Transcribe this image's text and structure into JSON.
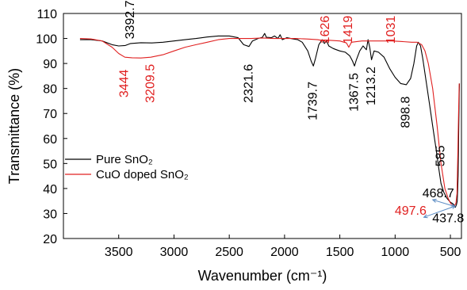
{
  "chart_data": {
    "type": "line",
    "title": "",
    "xlabel": "Wavenumber (cm⁻¹)",
    "ylabel": "Transmittance (%)",
    "xlim": [
      4000,
      400
    ],
    "x_reversed": true,
    "ylim": [
      20,
      110
    ],
    "x_ticks": [
      3500,
      3000,
      2500,
      2000,
      1500,
      1000,
      500
    ],
    "x_tick_labels": [
      "3500",
      "3000",
      "2500",
      "2000",
      "1500",
      "1000",
      "500"
    ],
    "y_ticks": [
      20,
      30,
      40,
      50,
      60,
      70,
      80,
      90,
      100,
      110
    ],
    "y_tick_labels": [
      "20",
      "30",
      "40",
      "50",
      "60",
      "70",
      "80",
      "90",
      "100",
      "110"
    ],
    "grid": false,
    "legend_position": "left",
    "legend": [
      {
        "label": "Pure SnO₂",
        "color": "#000000"
      },
      {
        "label": "CuO doped SnO₂",
        "color": "#e02020"
      }
    ],
    "series": [
      {
        "name": "Pure SnO₂",
        "color": "#000000",
        "points": [
          [
            3850,
            99.5
          ],
          [
            3750,
            99.5
          ],
          [
            3650,
            99.0
          ],
          [
            3560,
            97.5
          ],
          [
            3500,
            97.0
          ],
          [
            3440,
            97.2
          ],
          [
            3392.7,
            98.0
          ],
          [
            3300,
            98.3
          ],
          [
            3200,
            98.2
          ],
          [
            3100,
            98.5
          ],
          [
            3000,
            99.0
          ],
          [
            2900,
            99.5
          ],
          [
            2800,
            100.0
          ],
          [
            2700,
            100.6
          ],
          [
            2600,
            101.0
          ],
          [
            2500,
            101.0
          ],
          [
            2420,
            100.3
          ],
          [
            2370,
            97.5
          ],
          [
            2321.6,
            96.8
          ],
          [
            2290,
            99.0
          ],
          [
            2240,
            100.0
          ],
          [
            2200,
            100.5
          ],
          [
            2180,
            102.0
          ],
          [
            2165,
            100.5
          ],
          [
            2120,
            100.3
          ],
          [
            2090,
            101.0
          ],
          [
            2060,
            100.0
          ],
          [
            2040,
            101.5
          ],
          [
            2020,
            99.5
          ],
          [
            1980,
            100.3
          ],
          [
            1920,
            99.8
          ],
          [
            1880,
            99.5
          ],
          [
            1840,
            98.5
          ],
          [
            1790,
            95.0
          ],
          [
            1760,
            91.0
          ],
          [
            1739.7,
            89.0
          ],
          [
            1720,
            92.0
          ],
          [
            1690,
            97.5
          ],
          [
            1660,
            99.5
          ],
          [
            1640,
            98.0
          ],
          [
            1620,
            99.0
          ],
          [
            1600,
            97.0
          ],
          [
            1560,
            96.0
          ],
          [
            1530,
            95.5
          ],
          [
            1500,
            95.0
          ],
          [
            1450,
            94.5
          ],
          [
            1410,
            93.0
          ],
          [
            1385,
            91.0
          ],
          [
            1367.5,
            89.0
          ],
          [
            1350,
            91.5
          ],
          [
            1320,
            95.0
          ],
          [
            1290,
            97.0
          ],
          [
            1260,
            95.5
          ],
          [
            1245,
            99.5
          ],
          [
            1230,
            96.5
          ],
          [
            1213.2,
            91.5
          ],
          [
            1190,
            95.0
          ],
          [
            1150,
            94.5
          ],
          [
            1100,
            92.5
          ],
          [
            1050,
            88.0
          ],
          [
            1000,
            84.5
          ],
          [
            950,
            82.0
          ],
          [
            898.8,
            81.5
          ],
          [
            860,
            84.0
          ],
          [
            830,
            90.0
          ],
          [
            805,
            97.0
          ],
          [
            790,
            98.5
          ],
          [
            770,
            97.0
          ],
          [
            750,
            92.0
          ],
          [
            720,
            83.0
          ],
          [
            690,
            74.0
          ],
          [
            660,
            65.0
          ],
          [
            630,
            56.0
          ],
          [
            605,
            48.0
          ],
          [
            585,
            42.0
          ],
          [
            560,
            38.5
          ],
          [
            530,
            36.0
          ],
          [
            500,
            34.5
          ],
          [
            480,
            34.0
          ],
          [
            468.7,
            33.5
          ],
          [
            455,
            32.5
          ],
          [
            445,
            33.5
          ],
          [
            437.8,
            35.0
          ],
          [
            430,
            45.0
          ],
          [
            425,
            62.0
          ],
          [
            420,
            78.0
          ],
          [
            418,
            82.0
          ]
        ]
      },
      {
        "name": "CuO doped SnO₂",
        "color": "#e02020",
        "points": [
          [
            3850,
            100.0
          ],
          [
            3750,
            99.8
          ],
          [
            3650,
            99.0
          ],
          [
            3560,
            96.5
          ],
          [
            3500,
            94.0
          ],
          [
            3444,
            92.5
          ],
          [
            3380,
            92.3
          ],
          [
            3300,
            92.2
          ],
          [
            3209.5,
            92.5
          ],
          [
            3100,
            93.5
          ],
          [
            3000,
            95.0
          ],
          [
            2900,
            96.5
          ],
          [
            2800,
            97.5
          ],
          [
            2700,
            98.5
          ],
          [
            2600,
            99.5
          ],
          [
            2500,
            100.0
          ],
          [
            2400,
            100.0
          ],
          [
            2300,
            100.0
          ],
          [
            2200,
            100.2
          ],
          [
            2100,
            100.0
          ],
          [
            2000,
            100.0
          ],
          [
            1900,
            100.0
          ],
          [
            1800,
            99.8
          ],
          [
            1700,
            99.5
          ],
          [
            1640,
            99.0
          ],
          [
            1626,
            98.5
          ],
          [
            1600,
            99.3
          ],
          [
            1500,
            99.0
          ],
          [
            1440,
            98.2
          ],
          [
            1419,
            96.5
          ],
          [
            1395,
            98.5
          ],
          [
            1300,
            99.0
          ],
          [
            1200,
            99.0
          ],
          [
            1100,
            99.0
          ],
          [
            1031,
            99.0
          ],
          [
            950,
            98.8
          ],
          [
            850,
            98.5
          ],
          [
            800,
            98.5
          ],
          [
            760,
            97.5
          ],
          [
            730,
            95.0
          ],
          [
            700,
            90.0
          ],
          [
            660,
            80.0
          ],
          [
            620,
            65.0
          ],
          [
            585,
            50.0
          ],
          [
            550,
            40.0
          ],
          [
            520,
            36.0
          ],
          [
            497.6,
            34.0
          ],
          [
            480,
            33.5
          ],
          [
            465,
            33.0
          ],
          [
            450,
            34.0
          ],
          [
            440,
            38.0
          ],
          [
            432,
            55.0
          ],
          [
            425,
            72.0
          ],
          [
            420,
            82.0
          ]
        ]
      }
    ],
    "annotations": [
      {
        "text": "3392.7",
        "x": 3392.7,
        "y": 107.5,
        "color": "#000000",
        "rotate": -90
      },
      {
        "text": "3444",
        "x": 3444,
        "y": 82.0,
        "color": "#e02020",
        "rotate": -90
      },
      {
        "text": "3209.5",
        "x": 3209.5,
        "y": 82.0,
        "color": "#e02020",
        "rotate": -90
      },
      {
        "text": "2321.6",
        "x": 2321.6,
        "y": 82.0,
        "color": "#000000",
        "rotate": -90
      },
      {
        "text": "1739.7",
        "x": 1739.7,
        "y": 75.0,
        "color": "#000000",
        "rotate": -90
      },
      {
        "text": "1626",
        "x": 1626,
        "y": 103.5,
        "color": "#e02020",
        "rotate": -90
      },
      {
        "text": "1419",
        "x": 1419,
        "y": 103.5,
        "color": "#e02020",
        "rotate": -90
      },
      {
        "text": "1367.5",
        "x": 1367.5,
        "y": 78.5,
        "color": "#000000",
        "rotate": -90
      },
      {
        "text": "1213.2",
        "x": 1213.2,
        "y": 81.0,
        "color": "#000000",
        "rotate": -90
      },
      {
        "text": "1031",
        "x": 1031,
        "y": 103.5,
        "color": "#e02020",
        "rotate": -90
      },
      {
        "text": "898.8",
        "x": 898.8,
        "y": 70.5,
        "color": "#000000",
        "rotate": -90
      },
      {
        "text": "585",
        "x": 585,
        "y": 53.0,
        "color": "#000000",
        "rotate": -90
      },
      {
        "text": "468.7",
        "x": 610,
        "y": 36.5,
        "color": "#000000",
        "rotate": 0
      },
      {
        "text": "497.6",
        "x": 860,
        "y": 29.5,
        "color": "#e02020",
        "rotate": 0
      },
      {
        "text": "437.8",
        "x": 520,
        "y": 26.5,
        "color": "#000000",
        "rotate": 0
      }
    ],
    "arrows": [
      {
        "from": [
          660,
          35.5
        ],
        "to": [
          460,
          32.8
        ],
        "color": "#5b8cc4"
      },
      {
        "from": [
          740,
          28.5
        ],
        "to": [
          455,
          33.0
        ],
        "color": "#5b8cc4"
      }
    ]
  }
}
